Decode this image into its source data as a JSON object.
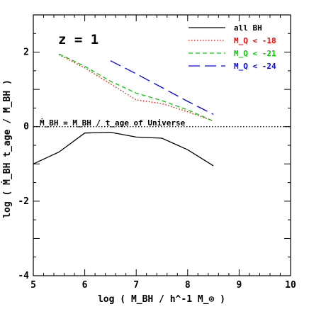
{
  "chart_data": {
    "type": "line",
    "panel_label": "z = 1",
    "xlabel": "log ( M_BH / h^-1 M_⊙ )",
    "ylabel": "log ( Ṁ_BH t_age / M_BH )",
    "xlim": [
      5,
      10
    ],
    "ylim": [
      -4,
      3
    ],
    "x_ticks": [
      5,
      6,
      7,
      8,
      9,
      10
    ],
    "y_ticks": [
      -4,
      -2,
      0,
      2
    ],
    "legend_position": "top-right",
    "reference_line": {
      "y": 0,
      "style": "dotted",
      "label": "Ṁ_BH = M_BH / t_age of Universe"
    },
    "series": [
      {
        "name": "all BH",
        "color": "#000000",
        "dash": "solid",
        "x": [
          5.0,
          5.5,
          6.0,
          6.5,
          7.0,
          7.5,
          8.0,
          8.5
        ],
        "y": [
          -1.0,
          -0.68,
          -0.17,
          -0.15,
          -0.28,
          -0.31,
          -0.62,
          -1.05
        ]
      },
      {
        "name": "M_Q < -18",
        "color": "#ff0000",
        "dash": "dotted",
        "x": [
          5.5,
          6.0,
          6.5,
          7.0,
          7.5,
          8.0,
          8.5
        ],
        "y": [
          1.93,
          1.58,
          1.15,
          0.72,
          0.62,
          0.4,
          0.15
        ]
      },
      {
        "name": "M_Q < -21",
        "color": "#00cc00",
        "dash": "dashed",
        "x": [
          5.5,
          6.0,
          6.5,
          7.0,
          7.5,
          8.0,
          8.5
        ],
        "y": [
          1.95,
          1.62,
          1.22,
          0.9,
          0.7,
          0.45,
          0.15
        ]
      },
      {
        "name": "M_Q < -24",
        "color": "#0000ff",
        "dash": "longdash",
        "x": [
          6.5,
          7.0,
          7.5,
          8.0,
          8.5
        ],
        "y": [
          1.77,
          1.42,
          1.05,
          0.68,
          0.33
        ]
      }
    ]
  }
}
